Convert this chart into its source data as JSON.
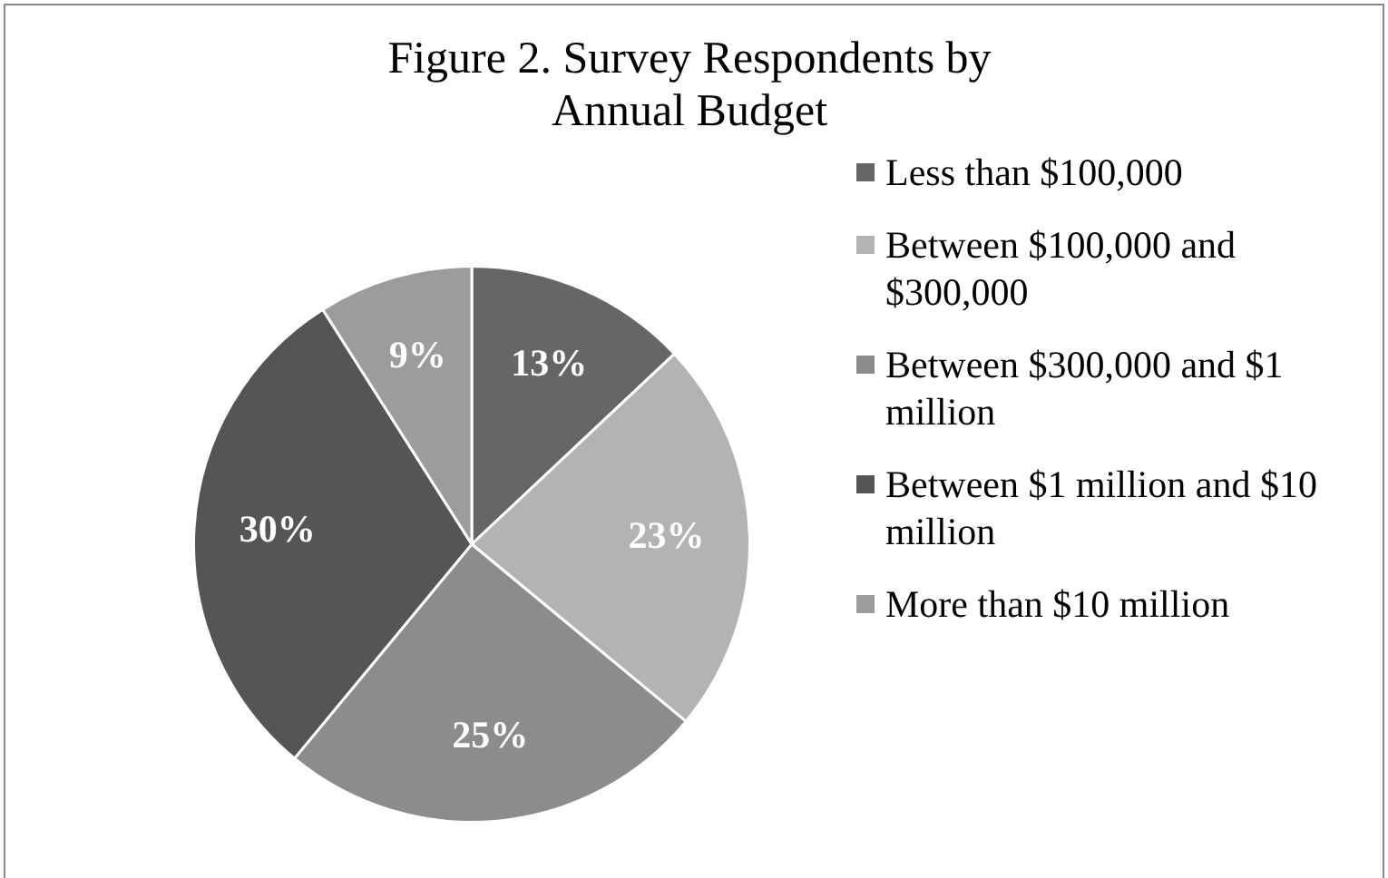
{
  "chart_data": {
    "type": "pie",
    "title": "Figure 2. Survey Respondents by Annual Budget",
    "categories": [
      "Less than $100,000",
      "Between $100,000 and $300,000",
      "Between $300,000 and $1 million",
      "Between $1 million and $10 million",
      "More than $10 million"
    ],
    "values": [
      13,
      23,
      25,
      30,
      9
    ],
    "colors": [
      "#666666",
      "#b3b3b3",
      "#8c8c8c",
      "#555555",
      "#9c9c9c"
    ],
    "value_labels": [
      "13%",
      "23%",
      "25%",
      "30%",
      "9%"
    ],
    "legend": "right"
  }
}
